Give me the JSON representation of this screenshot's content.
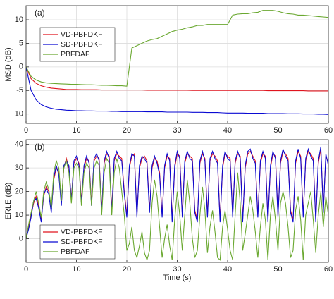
{
  "chart_data": [
    {
      "type": "line",
      "annotation": "(a)",
      "ylabel": "MSD (dB)",
      "xlim": [
        0,
        60
      ],
      "xticks": [
        0,
        10,
        20,
        30,
        40,
        50,
        60
      ],
      "ylim": [
        -12,
        13
      ],
      "yticks": [
        -10,
        -5,
        0,
        5,
        10
      ],
      "grid": true,
      "legend": "upper left",
      "x": [
        0,
        1,
        2,
        3,
        4,
        5,
        6,
        7,
        8,
        9,
        10,
        11,
        12,
        13,
        14,
        15,
        16,
        17,
        18,
        19,
        20,
        21,
        22,
        23,
        24,
        25,
        26,
        27,
        28,
        29,
        30,
        31,
        32,
        33,
        34,
        35,
        36,
        37,
        38,
        39,
        40,
        41,
        42,
        43,
        44,
        45,
        46,
        47,
        48,
        49,
        50,
        51,
        52,
        53,
        54,
        55,
        56,
        57,
        58,
        59,
        60
      ],
      "series": [
        {
          "name": "VD-PBFDKF",
          "color": "#e0141e",
          "values": [
            0,
            -2.5,
            -3.5,
            -4,
            -4.3,
            -4.5,
            -4.6,
            -4.7,
            -4.8,
            -4.8,
            -4.8,
            -4.85,
            -4.85,
            -4.85,
            -4.85,
            -4.9,
            -4.9,
            -4.9,
            -4.9,
            -4.9,
            -4.9,
            -4.9,
            -4.9,
            -4.9,
            -4.95,
            -4.95,
            -4.95,
            -4.95,
            -4.95,
            -4.95,
            -4.95,
            -4.95,
            -4.95,
            -5,
            -5,
            -5,
            -5,
            -5,
            -5,
            -5,
            -5,
            -5,
            -5,
            -5,
            -5,
            -5,
            -5,
            -5,
            -5.05,
            -5.05,
            -5.05,
            -5.05,
            -5.05,
            -5.05,
            -5.05,
            -5.05,
            -5.1,
            -5.1,
            -5.1,
            -5.1,
            -5.1
          ]
        },
        {
          "name": "SD-PBFDKF",
          "color": "#0a0ad2",
          "values": [
            0,
            -5,
            -7,
            -8,
            -8.5,
            -8.8,
            -9,
            -9.1,
            -9.2,
            -9.25,
            -9.3,
            -9.3,
            -9.35,
            -9.35,
            -9.4,
            -9.4,
            -9.4,
            -9.45,
            -9.45,
            -9.5,
            -9.5,
            -9.5,
            -9.5,
            -9.5,
            -9.55,
            -9.55,
            -9.55,
            -9.55,
            -9.6,
            -9.6,
            -9.6,
            -9.6,
            -9.6,
            -9.65,
            -9.65,
            -9.65,
            -9.7,
            -9.7,
            -9.7,
            -9.75,
            -9.8,
            -9.8,
            -9.8,
            -9.8,
            -9.85,
            -9.85,
            -9.85,
            -9.85,
            -9.9,
            -9.9,
            -9.9,
            -9.9,
            -9.95,
            -9.95,
            -9.95,
            -10,
            -10,
            -10,
            -10.05,
            -10.05,
            -10.1
          ]
        },
        {
          "name": "PBFDAF",
          "color": "#6aa830",
          "values": [
            0,
            -2,
            -2.8,
            -3.2,
            -3.4,
            -3.5,
            -3.55,
            -3.6,
            -3.65,
            -3.7,
            -3.7,
            -3.75,
            -3.8,
            -3.8,
            -3.85,
            -3.9,
            -3.9,
            -3.95,
            -4,
            -4,
            -4.1,
            4,
            4.5,
            5,
            5.5,
            5.8,
            6,
            6.5,
            7,
            7.5,
            7.8,
            8,
            8.3,
            8.5,
            8.8,
            8.8,
            9,
            9,
            9,
            9,
            9,
            11,
            11.2,
            11.3,
            11.3,
            11.5,
            11.6,
            12,
            12,
            12,
            11.8,
            11.5,
            11.3,
            11.2,
            11,
            11,
            10.9,
            10.8,
            10.7,
            10.6,
            10.5
          ]
        }
      ]
    },
    {
      "type": "line",
      "annotation": "(b)",
      "ylabel": "ERLE (dB)",
      "xlabel": "Time (s)",
      "xlim": [
        0,
        60
      ],
      "xticks": [
        0,
        10,
        20,
        30,
        40,
        50,
        60
      ],
      "ylim": [
        -10,
        42
      ],
      "yticks": [
        0,
        10,
        20,
        30,
        40
      ],
      "grid": true,
      "legend": "lower left",
      "x": [
        0,
        0.5,
        1,
        1.5,
        2,
        2.5,
        3,
        3.5,
        4,
        4.5,
        5,
        5.5,
        6,
        6.5,
        7,
        7.5,
        8,
        8.5,
        9,
        9.5,
        10,
        10.5,
        11,
        11.5,
        12,
        12.5,
        13,
        13.5,
        14,
        14.5,
        15,
        15.5,
        16,
        16.5,
        17,
        17.5,
        18,
        18.5,
        19,
        19.5,
        20,
        20.5,
        21,
        21.5,
        22,
        22.5,
        23,
        23.5,
        24,
        24.5,
        25,
        25.5,
        26,
        26.5,
        27,
        27.5,
        28,
        28.5,
        29,
        29.5,
        30,
        30.5,
        31,
        31.5,
        32,
        32.5,
        33,
        33.5,
        34,
        34.5,
        35,
        35.5,
        36,
        36.5,
        37,
        37.5,
        38,
        38.5,
        39,
        39.5,
        40,
        40.5,
        41,
        41.5,
        42,
        42.5,
        43,
        43.5,
        44,
        44.5,
        45,
        45.5,
        46,
        46.5,
        47,
        47.5,
        48,
        48.5,
        49,
        49.5,
        50,
        50.5,
        51,
        51.5,
        52,
        52.5,
        53,
        53.5,
        54,
        54.5,
        55,
        55.5,
        56,
        56.5,
        57,
        57.5,
        58,
        58.5,
        59,
        59.5,
        60
      ],
      "series": [
        {
          "name": "VD-PBFDKF",
          "color": "#e0141e",
          "values": [
            0,
            5,
            10,
            15,
            18,
            14,
            8,
            18,
            22,
            20,
            12,
            25,
            30,
            28,
            15,
            30,
            34,
            30,
            17,
            32,
            34,
            32,
            16,
            30,
            34,
            33,
            15,
            33,
            35,
            34,
            12,
            32,
            36,
            35,
            12,
            33,
            36,
            35,
            34,
            20,
            10,
            30,
            35,
            36,
            10,
            30,
            34,
            35,
            33,
            12,
            30,
            34,
            33,
            28,
            10,
            30,
            35,
            34,
            8,
            30,
            36,
            35,
            10,
            32,
            36,
            35,
            34,
            12,
            8,
            32,
            36,
            34,
            10,
            33,
            36,
            35,
            33,
            8,
            30,
            36,
            35,
            34,
            10,
            32,
            36,
            35,
            8,
            30,
            36,
            37,
            35,
            33,
            10,
            32,
            36,
            35,
            8,
            30,
            36,
            35,
            10,
            32,
            37,
            36,
            34,
            12,
            8,
            32,
            37,
            35,
            10,
            33,
            37,
            36,
            34,
            8,
            32,
            38,
            12,
            35,
            32
          ]
        },
        {
          "name": "SD-PBFDKF",
          "color": "#0a0ad2",
          "values": [
            0,
            4,
            9,
            16,
            17,
            13,
            7,
            19,
            21,
            19,
            11,
            26,
            31,
            27,
            14,
            31,
            33,
            31,
            16,
            33,
            35,
            31,
            15,
            31,
            35,
            32,
            14,
            34,
            36,
            33,
            11,
            33,
            37,
            34,
            11,
            34,
            37,
            34,
            33,
            19,
            9,
            31,
            36,
            35,
            9,
            31,
            35,
            34,
            32,
            11,
            31,
            35,
            32,
            27,
            9,
            31,
            36,
            33,
            7,
            31,
            37,
            34,
            9,
            33,
            37,
            34,
            33,
            11,
            7,
            33,
            37,
            33,
            9,
            34,
            37,
            34,
            32,
            7,
            31,
            37,
            34,
            33,
            9,
            33,
            37,
            34,
            7,
            31,
            37,
            38,
            34,
            32,
            9,
            33,
            37,
            34,
            7,
            31,
            37,
            34,
            9,
            33,
            38,
            35,
            33,
            11,
            7,
            33,
            38,
            34,
            9,
            34,
            38,
            35,
            33,
            7,
            33,
            39,
            11,
            36,
            31
          ]
        },
        {
          "name": "PBFDAF",
          "color": "#6aa830",
          "values": [
            0,
            6,
            11,
            16,
            20,
            15,
            9,
            20,
            24,
            21,
            13,
            28,
            33,
            30,
            16,
            30,
            33,
            28,
            15,
            30,
            32,
            30,
            14,
            28,
            32,
            30,
            14,
            30,
            33,
            31,
            10,
            28,
            34,
            32,
            10,
            28,
            34,
            30,
            20,
            10,
            -5,
            -2,
            5,
            -5,
            -8,
            -3,
            3,
            -6,
            -9,
            -5,
            15,
            25,
            18,
            5,
            -8,
            0,
            6,
            -3,
            -9,
            8,
            20,
            10,
            -5,
            10,
            25,
            15,
            0,
            -8,
            -5,
            10,
            22,
            12,
            -6,
            5,
            12,
            3,
            -8,
            -9,
            5,
            12,
            4,
            -5,
            -9,
            10,
            28,
            15,
            -5,
            2,
            10,
            18,
            12,
            3,
            -8,
            5,
            15,
            8,
            -9,
            10,
            18,
            8,
            -5,
            15,
            20,
            15,
            5,
            -8,
            -5,
            12,
            18,
            8,
            -9,
            10,
            15,
            20,
            8,
            -6,
            10,
            20,
            5,
            18,
            10
          ]
        }
      ]
    }
  ]
}
